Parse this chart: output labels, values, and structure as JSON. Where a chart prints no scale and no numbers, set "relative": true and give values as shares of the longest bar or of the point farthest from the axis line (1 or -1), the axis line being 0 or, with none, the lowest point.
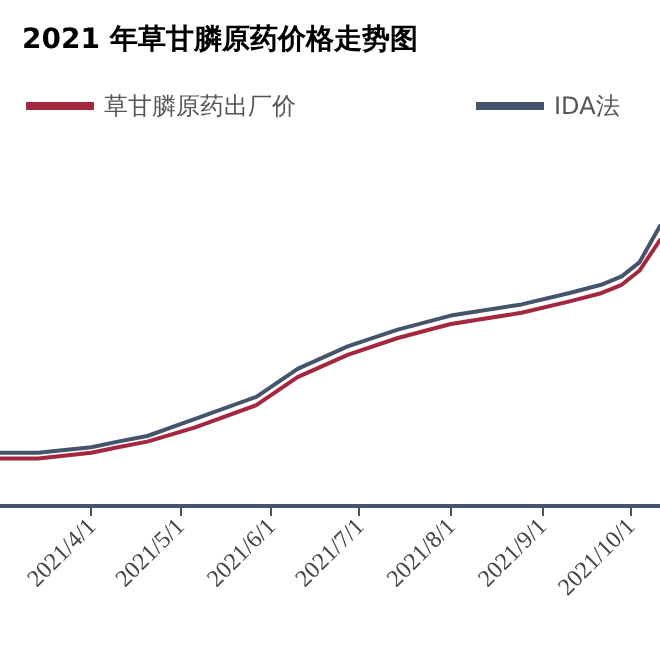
{
  "chart_data": {
    "type": "line",
    "title": "2021 年草甘膦原药价格走势图",
    "relative": true,
    "legend": "top",
    "grid": false,
    "marker": "none",
    "line_style": "solid",
    "x": [
      "2021-03-01",
      "2021-03-14",
      "2021-04-01",
      "2021-04-10",
      "2021-04-20",
      "2021-05-06",
      "2021-05-27",
      "2021-06-10",
      "2021-06-27",
      "2021-07-14",
      "2021-08-01",
      "2021-08-25",
      "2021-09-10",
      "2021-09-21",
      "2021-09-28",
      "2021-10-04",
      "2021-10-11"
    ],
    "xlim": [
      "2021-03-01",
      "2021-10-11"
    ],
    "xticks": [
      {
        "value": "2021-04-01",
        "label": "2021/4/1"
      },
      {
        "value": "2021-05-01",
        "label": "2021/5/1"
      },
      {
        "value": "2021-06-01",
        "label": "2021/6/1"
      },
      {
        "value": "2021-07-01",
        "label": "2021/7/1"
      },
      {
        "value": "2021-08-01",
        "label": "2021/8/1"
      },
      {
        "value": "2021-09-01",
        "label": "2021/9/1"
      },
      {
        "value": "2021-10-01",
        "label": "2021/10/1"
      }
    ],
    "series": [
      {
        "name": "草甘膦原药出厂价",
        "color": "#a3283f",
        "values": [
          0.17,
          0.17,
          0.19,
          0.21,
          0.23,
          0.28,
          0.36,
          0.46,
          0.54,
          0.6,
          0.65,
          0.69,
          0.73,
          0.76,
          0.79,
          0.84,
          0.95
        ]
      },
      {
        "name": "IDA法",
        "color": "#44546a",
        "values": [
          0.19,
          0.19,
          0.21,
          0.23,
          0.25,
          0.31,
          0.39,
          0.49,
          0.57,
          0.63,
          0.68,
          0.72,
          0.76,
          0.79,
          0.82,
          0.87,
          1
        ]
      }
    ]
  }
}
